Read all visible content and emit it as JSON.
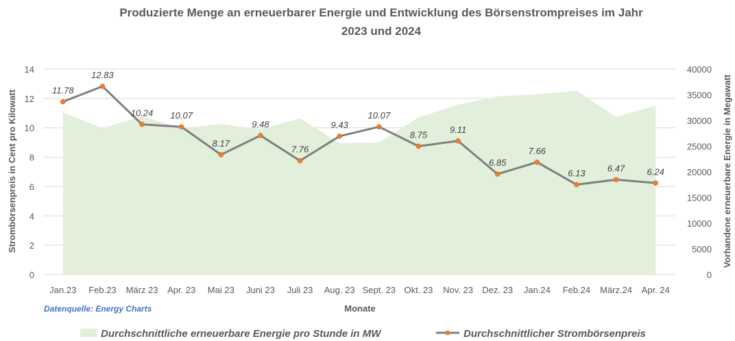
{
  "chart_data": {
    "type": "line",
    "title": "Produzierte Menge an erneuerbarer Energie und Entwicklung des Börsenstrompreises im Jahr 2023  und 2024",
    "title_lines": [
      "Produzierte Menge an erneuerbarer Energie und Entwicklung des Börsenstrompreises im Jahr",
      "2023  und 2024"
    ],
    "xlabel": "Monate",
    "ylabel": "Strombörsenpreis in Cent pro Kilowatt",
    "y2label": "Vorhandene erneuerbare Energie in Megawatt",
    "source": "Datenquelle: Energy Charts",
    "categories": [
      "Jan.23",
      "Feb.23",
      "März 23",
      "Apr. 23",
      "Mai 23",
      "Juni 23",
      "Juli 23",
      "Aug. 23",
      "Sept. 23",
      "Okt. 23",
      "Nov. 23",
      "Dez. 23",
      "Jan.24",
      "Feb.24",
      "März.24",
      "Apr. 24"
    ],
    "ylim": [
      0,
      14
    ],
    "yticks": [
      "0",
      "2",
      "4",
      "6",
      "8",
      "10",
      "12",
      "14"
    ],
    "y2lim": [
      0,
      40000
    ],
    "y2ticks": [
      "0",
      "5000",
      "10000",
      "15000",
      "20000",
      "25000",
      "30000",
      "35000",
      "40000"
    ],
    "grid": true,
    "legend": "bottom",
    "series": [
      {
        "name": "Durchschnittliche erneuerbare Energie pro Stunde in MW",
        "type": "area",
        "axis": "right",
        "color": "#e2efda",
        "values": [
          31600,
          28500,
          30800,
          28500,
          29300,
          28300,
          30400,
          25600,
          25700,
          30600,
          33100,
          34700,
          35100,
          35800,
          30700,
          32900
        ]
      },
      {
        "name": "Durchschnittlicher Strombörsenpreis",
        "type": "line",
        "axis": "left",
        "color": "#7f7f7f",
        "marker_color": "#ed7d31",
        "values": [
          11.78,
          12.83,
          10.24,
          10.07,
          8.17,
          9.48,
          7.76,
          9.43,
          10.07,
          8.75,
          9.11,
          6.85,
          7.66,
          6.13,
          6.47,
          6.24
        ],
        "labels": [
          "11.78",
          "12.83",
          "10.24",
          "10.07",
          "8.17",
          "9.48",
          "7.76",
          "9.43",
          "10.07",
          "8.75",
          "9.11",
          "6.85",
          "7.66",
          "6.13",
          "6.47",
          "6.24"
        ]
      }
    ]
  }
}
